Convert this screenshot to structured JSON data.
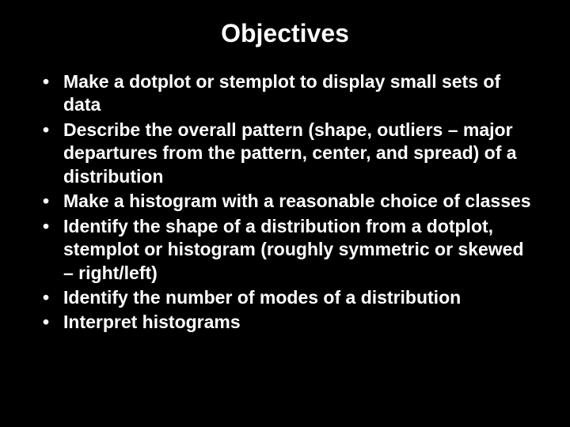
{
  "title": "Objectives",
  "title_fontsize": 32,
  "bullet_fontsize": 23,
  "text_color": "#ffffff",
  "background_color": "#000000",
  "bullets": [
    "Make a dotplot or stemplot to display small sets of data",
    "Describe the overall pattern (shape, outliers – major departures from the pattern, center, and spread) of a distribution",
    "Make a histogram with a reasonable choice of classes",
    "Identify the shape of a distribution from a dotplot, stemplot or histogram (roughly symmetric or skewed – right/left)",
    "Identify the number of modes of a distribution",
    "Interpret histograms"
  ]
}
